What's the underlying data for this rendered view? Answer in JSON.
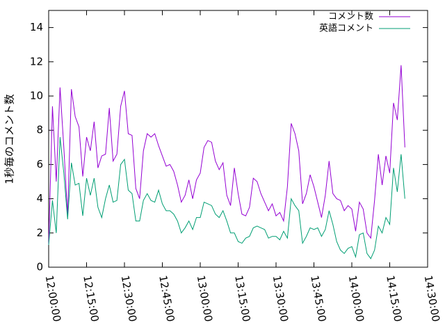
{
  "chart_data": {
    "type": "line",
    "y_label": "1秒毎のコメント数",
    "x": [
      "12:00:00",
      "12:01:30",
      "12:03:00",
      "12:04:30",
      "12:06:00",
      "12:07:30",
      "12:09:00",
      "12:10:30",
      "12:12:00",
      "12:13:30",
      "12:15:00",
      "12:16:30",
      "12:18:00",
      "12:19:30",
      "12:21:00",
      "12:22:30",
      "12:24:00",
      "12:25:30",
      "12:27:00",
      "12:28:30",
      "12:30:00",
      "12:31:30",
      "12:33:00",
      "12:34:30",
      "12:36:00",
      "12:37:30",
      "12:39:00",
      "12:40:30",
      "12:42:00",
      "12:43:30",
      "12:45:00",
      "12:46:30",
      "12:48:00",
      "12:49:30",
      "12:51:00",
      "12:52:30",
      "12:54:00",
      "12:55:30",
      "12:57:00",
      "12:58:30",
      "13:00:00",
      "13:01:30",
      "13:03:00",
      "13:04:30",
      "13:06:00",
      "13:07:30",
      "13:09:00",
      "13:10:30",
      "13:12:00",
      "13:13:30",
      "13:15:00",
      "13:16:30",
      "13:18:00",
      "13:19:30",
      "13:21:00",
      "13:22:30",
      "13:24:00",
      "13:25:30",
      "13:27:00",
      "13:28:30",
      "13:30:00",
      "13:31:30",
      "13:33:00",
      "13:34:30",
      "13:36:00",
      "13:37:30",
      "13:39:00",
      "13:40:30",
      "13:42:00",
      "13:43:30",
      "13:45:00",
      "13:46:30",
      "13:48:00",
      "13:49:30",
      "13:51:00",
      "13:52:30",
      "13:54:00",
      "13:55:30",
      "13:57:00",
      "13:58:30",
      "14:00:00",
      "14:01:30",
      "14:03:00",
      "14:04:30",
      "14:06:00",
      "14:07:30",
      "14:09:00",
      "14:10:30",
      "14:12:00",
      "14:13:30",
      "14:15:00",
      "14:16:30",
      "14:18:00",
      "14:19:30",
      "14:21:00"
    ],
    "series": [
      {
        "name": "コメント数",
        "color": "#9400d3",
        "values": [
          1.3,
          9.4,
          5,
          10.5,
          7,
          3,
          10.4,
          8.8,
          8.2,
          5.3,
          7.6,
          6.8,
          8.5,
          5.8,
          6.5,
          6.6,
          9.3,
          6.2,
          6.6,
          9.4,
          10.3,
          7.8,
          7.7,
          4.6,
          4.0,
          6.8,
          7.8,
          7.6,
          7.8,
          7.1,
          6.5,
          5.9,
          6.0,
          5.6,
          4.8,
          3.8,
          4.2,
          5.1,
          4.0,
          5.1,
          5.5,
          7.0,
          7.4,
          7.3,
          6.2,
          5.7,
          6.1,
          4.2,
          3.6,
          5.8,
          4.3,
          3.1,
          3.0,
          3.5,
          5.2,
          5.0,
          4.3,
          3.8,
          3.3,
          3.7,
          3.0,
          3.2,
          2.7,
          4.7,
          8.4,
          7.8,
          6.8,
          3.7,
          4.3,
          5.4,
          4.7,
          3.8,
          2.9,
          4.2,
          6.2,
          4.3,
          4.0,
          3.9,
          3.3,
          3.6,
          3.4,
          2.1,
          3.8,
          3.4,
          2.0,
          1.7,
          3.9,
          6.6,
          4.8,
          6.5,
          5.5,
          9.6,
          8.6,
          11.8,
          7.0
        ]
      },
      {
        "name": "英語コメント",
        "color": "#009e73",
        "values": [
          1.3,
          3.9,
          2.0,
          7.6,
          5.5,
          2.8,
          6.1,
          4.8,
          4.9,
          3.0,
          5.2,
          4.2,
          5.2,
          3.5,
          2.9,
          4.0,
          4.8,
          3.8,
          3.9,
          6.0,
          6.3,
          4.5,
          4.3,
          2.7,
          2.7,
          3.9,
          4.3,
          3.9,
          3.8,
          4.5,
          3.7,
          3.3,
          3.3,
          3.1,
          2.7,
          2.0,
          2.3,
          2.7,
          2.2,
          2.9,
          2.9,
          3.8,
          3.7,
          3.6,
          3.1,
          2.9,
          3.3,
          2.7,
          2.0,
          2.0,
          1.5,
          1.4,
          1.7,
          1.8,
          2.3,
          2.4,
          2.3,
          2.2,
          1.7,
          1.8,
          1.8,
          1.6,
          2.1,
          1.7,
          4.0,
          3.6,
          3.3,
          1.4,
          1.8,
          2.3,
          2.2,
          2.3,
          1.8,
          2.2,
          3.3,
          2.5,
          1.5,
          1.0,
          0.8,
          1.1,
          1.2,
          0.6,
          1.9,
          2.0,
          0.8,
          0.5,
          1.0,
          2.4,
          2.0,
          2.9,
          2.5,
          5.8,
          4.4,
          6.6,
          4.0
        ]
      }
    ],
    "xlim": [
      "12:00:00",
      "14:30:00"
    ],
    "xticks": [
      "12:00:00",
      "12:15:00",
      "12:30:00",
      "12:45:00",
      "13:00:00",
      "13:15:00",
      "13:30:00",
      "13:45:00",
      "14:00:00",
      "14:15:00",
      "14:30:00"
    ],
    "ylim": [
      0,
      15
    ],
    "yticks": [
      0,
      2,
      4,
      6,
      8,
      10,
      12,
      14
    ],
    "legend": "top-right"
  }
}
